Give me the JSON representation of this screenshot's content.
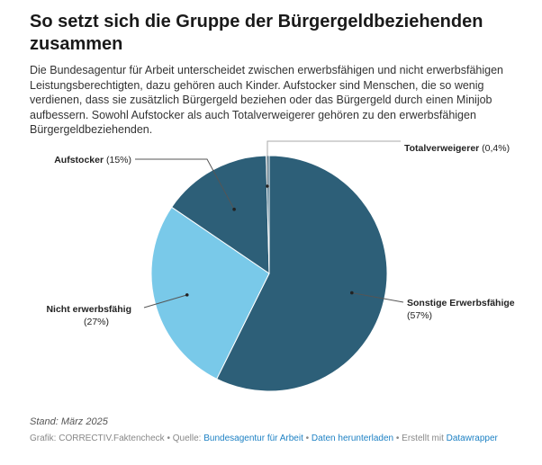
{
  "title": "So setzt sich die Gruppe der Bürgergeldbeziehenden zusammen",
  "description": "Die Bundesagentur für Arbeit unterscheidet zwischen erwerbsfähigen und nicht erwerbsfähigen Leistungsberechtigten, dazu gehören auch Kinder. Aufstocker sind Menschen, die so wenig verdienen, dass sie zusätzlich Bürgergeld beziehen oder das Bürgergeld durch einen Minijob aufbessern. Sowohl Aufstocker als auch Totalverweigerer gehören zu den erwerbsfähigen Bürgergeldbeziehenden.",
  "chart_data": {
    "type": "pie",
    "slices": [
      {
        "name": "Sonstige Erwerbsfähige",
        "value": 57,
        "value_label": "(57%)",
        "color": "#2d5f78"
      },
      {
        "name": "Nicht erwerbsfähig",
        "value": 27,
        "value_label": "(27%)",
        "color": "#79c9e9"
      },
      {
        "name": "Aufstocker",
        "value": 15,
        "value_label": "(15%)",
        "color": "#2d5f78"
      },
      {
        "name": "Totalverweigerer",
        "value": 0.4,
        "value_label": "(0,4%)",
        "color": "#2d5f78"
      }
    ]
  },
  "note": "Stand: März 2025",
  "footer": {
    "grafik": "Grafik: CORRECTIV.Faktencheck",
    "sep": " • ",
    "quelle_label": "Quelle: ",
    "quelle_link": "Bundesagentur für Arbeit",
    "download": "Daten herunterladen",
    "made_with": "Erstellt mit ",
    "datawrapper": "Datawrapper"
  }
}
